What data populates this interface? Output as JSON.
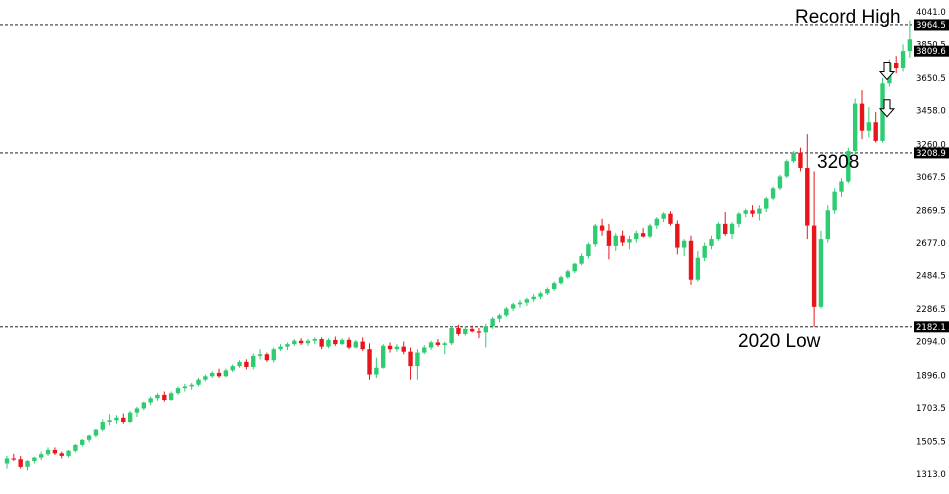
{
  "chart_data": {
    "type": "candlestick",
    "title": "",
    "xlabel": "",
    "ylabel": "",
    "ylim": [
      1313.0,
      4041.0
    ],
    "y_ticks": [
      "4041.0",
      "3850.5",
      "3650.5",
      "3458.0",
      "3260.0",
      "3067.5",
      "2869.5",
      "2677.0",
      "2484.5",
      "2286.5",
      "2094.0",
      "1896.0",
      "1703.5",
      "1505.5",
      "1313.0"
    ],
    "colors": {
      "bull": "#2ecc71",
      "bear": "#e8161b",
      "level_line": "#000000",
      "price_tag": "#000000"
    },
    "levels": [
      {
        "value": 3964.5,
        "tag": "3964.5",
        "annotation": "Record High"
      },
      {
        "value": 3208.9,
        "tag": "3208.9",
        "annotation": "3208"
      },
      {
        "value": 2182.1,
        "tag": "2182.1",
        "annotation": "2020 Low"
      }
    ],
    "current_price": {
      "value": 3809.6,
      "tag": "3809.6"
    },
    "arrows": [
      {
        "icon": "down-arrow-icon",
        "level": 3690
      },
      {
        "icon": "down-arrow-icon",
        "level": 3470
      }
    ],
    "candles": [
      [
        1375,
        1420,
        1345,
        1405
      ],
      [
        1405,
        1432,
        1390,
        1400
      ],
      [
        1400,
        1420,
        1345,
        1355
      ],
      [
        1355,
        1395,
        1335,
        1390
      ],
      [
        1390,
        1415,
        1375,
        1410
      ],
      [
        1410,
        1445,
        1395,
        1430
      ],
      [
        1430,
        1470,
        1420,
        1455
      ],
      [
        1455,
        1470,
        1425,
        1435
      ],
      [
        1435,
        1445,
        1405,
        1420
      ],
      [
        1420,
        1455,
        1410,
        1450
      ],
      [
        1450,
        1490,
        1440,
        1485
      ],
      [
        1485,
        1520,
        1475,
        1515
      ],
      [
        1515,
        1545,
        1500,
        1540
      ],
      [
        1540,
        1580,
        1530,
        1575
      ],
      [
        1575,
        1635,
        1565,
        1620
      ],
      [
        1620,
        1665,
        1600,
        1630
      ],
      [
        1630,
        1660,
        1610,
        1645
      ],
      [
        1645,
        1670,
        1610,
        1620
      ],
      [
        1620,
        1685,
        1615,
        1675
      ],
      [
        1675,
        1710,
        1650,
        1700
      ],
      [
        1700,
        1740,
        1690,
        1735
      ],
      [
        1735,
        1770,
        1720,
        1760
      ],
      [
        1760,
        1790,
        1745,
        1780
      ],
      [
        1780,
        1800,
        1740,
        1750
      ],
      [
        1750,
        1800,
        1745,
        1790
      ],
      [
        1790,
        1830,
        1780,
        1820
      ],
      [
        1820,
        1845,
        1800,
        1830
      ],
      [
        1830,
        1850,
        1810,
        1840
      ],
      [
        1840,
        1880,
        1830,
        1870
      ],
      [
        1870,
        1900,
        1860,
        1890
      ],
      [
        1890,
        1920,
        1880,
        1910
      ],
      [
        1910,
        1935,
        1880,
        1890
      ],
      [
        1890,
        1935,
        1885,
        1925
      ],
      [
        1925,
        1960,
        1915,
        1950
      ],
      [
        1950,
        1985,
        1940,
        1975
      ],
      [
        1975,
        1990,
        1930,
        1945
      ],
      [
        1945,
        2025,
        1930,
        2010
      ],
      [
        2010,
        2050,
        1990,
        2020
      ],
      [
        2020,
        2030,
        1975,
        1985
      ],
      [
        1985,
        2060,
        1970,
        2050
      ],
      [
        2050,
        2080,
        2040,
        2065
      ],
      [
        2065,
        2090,
        2045,
        2080
      ],
      [
        2080,
        2110,
        2070,
        2100
      ],
      [
        2100,
        2115,
        2075,
        2085
      ],
      [
        2085,
        2110,
        2070,
        2100
      ],
      [
        2100,
        2120,
        2080,
        2110
      ],
      [
        2110,
        2120,
        2050,
        2065
      ],
      [
        2065,
        2115,
        2055,
        2105
      ],
      [
        2105,
        2125,
        2070,
        2080
      ],
      [
        2080,
        2115,
        2075,
        2105
      ],
      [
        2105,
        2120,
        2050,
        2060
      ],
      [
        2060,
        2105,
        2055,
        2095
      ],
      [
        2095,
        2120,
        2040,
        2050
      ],
      [
        2050,
        2085,
        1870,
        1900
      ],
      [
        1900,
        2000,
        1880,
        1940
      ],
      [
        1940,
        2080,
        1935,
        2070
      ],
      [
        2070,
        2090,
        2030,
        2050
      ],
      [
        2050,
        2080,
        2035,
        2065
      ],
      [
        2065,
        2095,
        2020,
        2035
      ],
      [
        2035,
        2060,
        1870,
        1950
      ],
      [
        1950,
        2050,
        1870,
        2030
      ],
      [
        2030,
        2075,
        2020,
        2060
      ],
      [
        2060,
        2100,
        2045,
        2090
      ],
      [
        2090,
        2110,
        2065,
        2075
      ],
      [
        2075,
        2095,
        2020,
        2085
      ],
      [
        2085,
        2185,
        2075,
        2175
      ],
      [
        2175,
        2195,
        2130,
        2140
      ],
      [
        2140,
        2185,
        2130,
        2170
      ],
      [
        2170,
        2190,
        2150,
        2155
      ],
      [
        2155,
        2175,
        2115,
        2150
      ],
      [
        2150,
        2200,
        2060,
        2185
      ],
      [
        2185,
        2240,
        2170,
        2230
      ],
      [
        2230,
        2260,
        2210,
        2250
      ],
      [
        2250,
        2300,
        2240,
        2290
      ],
      [
        2290,
        2325,
        2275,
        2315
      ],
      [
        2315,
        2340,
        2295,
        2325
      ],
      [
        2325,
        2355,
        2305,
        2345
      ],
      [
        2345,
        2375,
        2330,
        2360
      ],
      [
        2360,
        2390,
        2345,
        2380
      ],
      [
        2380,
        2415,
        2370,
        2405
      ],
      [
        2405,
        2450,
        2395,
        2440
      ],
      [
        2440,
        2485,
        2430,
        2475
      ],
      [
        2475,
        2520,
        2465,
        2510
      ],
      [
        2510,
        2560,
        2500,
        2555
      ],
      [
        2555,
        2615,
        2545,
        2600
      ],
      [
        2600,
        2680,
        2585,
        2670
      ],
      [
        2670,
        2790,
        2655,
        2780
      ],
      [
        2780,
        2820,
        2720,
        2750
      ],
      [
        2750,
        2790,
        2580,
        2660
      ],
      [
        2660,
        2735,
        2630,
        2720
      ],
      [
        2720,
        2750,
        2660,
        2680
      ],
      [
        2680,
        2720,
        2640,
        2700
      ],
      [
        2700,
        2750,
        2680,
        2735
      ],
      [
        2735,
        2765,
        2710,
        2715
      ],
      [
        2715,
        2790,
        2705,
        2780
      ],
      [
        2780,
        2830,
        2760,
        2820
      ],
      [
        2820,
        2860,
        2800,
        2850
      ],
      [
        2850,
        2865,
        2780,
        2790
      ],
      [
        2790,
        2810,
        2610,
        2650
      ],
      [
        2650,
        2700,
        2600,
        2690
      ],
      [
        2690,
        2720,
        2430,
        2460
      ],
      [
        2460,
        2630,
        2450,
        2590
      ],
      [
        2590,
        2680,
        2570,
        2660
      ],
      [
        2660,
        2720,
        2640,
        2700
      ],
      [
        2700,
        2800,
        2690,
        2790
      ],
      [
        2790,
        2860,
        2720,
        2730
      ],
      [
        2730,
        2800,
        2700,
        2790
      ],
      [
        2790,
        2860,
        2770,
        2850
      ],
      [
        2850,
        2880,
        2830,
        2870
      ],
      [
        2870,
        2900,
        2830,
        2850
      ],
      [
        2850,
        2900,
        2810,
        2880
      ],
      [
        2880,
        2950,
        2860,
        2940
      ],
      [
        2940,
        3010,
        2930,
        3000
      ],
      [
        3000,
        3080,
        2990,
        3070
      ],
      [
        3070,
        3170,
        3060,
        3160
      ],
      [
        3160,
        3220,
        3150,
        3210
      ],
      [
        3210,
        3240,
        3100,
        3120
      ],
      [
        3120,
        3320,
        2700,
        2780
      ],
      [
        2780,
        3100,
        2182,
        2300
      ],
      [
        2300,
        2750,
        2290,
        2700
      ],
      [
        2700,
        2900,
        2680,
        2870
      ],
      [
        2870,
        3000,
        2850,
        2980
      ],
      [
        2980,
        3060,
        2950,
        3040
      ],
      [
        3040,
        3240,
        3030,
        3220
      ],
      [
        3220,
        3530,
        3200,
        3500
      ],
      [
        3500,
        3580,
        3290,
        3340
      ],
      [
        3340,
        3480,
        3300,
        3390
      ],
      [
        3390,
        3450,
        3270,
        3280
      ],
      [
        3280,
        3650,
        3270,
        3620
      ],
      [
        3620,
        3760,
        3600,
        3740
      ],
      [
        3740,
        3780,
        3680,
        3710
      ],
      [
        3710,
        3850,
        3690,
        3810
      ],
      [
        3810,
        3990,
        3770,
        3880
      ]
    ]
  }
}
